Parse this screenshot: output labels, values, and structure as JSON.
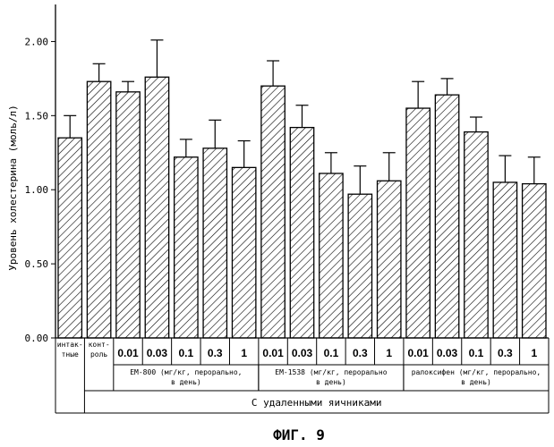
{
  "chart_data": {
    "type": "bar",
    "ylabel": "Уровень холестерина (моль/л)",
    "ylim": [
      0,
      2.25
    ],
    "yticks": [
      "0.00",
      "0.50",
      "1.00",
      "1.50",
      "2.00"
    ],
    "bars": [
      {
        "label": "интак-\nтные",
        "value": 1.35,
        "err": 0.15
      },
      {
        "label": "конт-\nроль",
        "value": 1.73,
        "err": 0.12
      },
      {
        "label": "0.01",
        "value": 1.66,
        "err": 0.07
      },
      {
        "label": "0.03",
        "value": 1.76,
        "err": 0.25
      },
      {
        "label": "0.1",
        "value": 1.22,
        "err": 0.12
      },
      {
        "label": "0.3",
        "value": 1.28,
        "err": 0.19
      },
      {
        "label": "1",
        "value": 1.15,
        "err": 0.18
      },
      {
        "label": "0.01",
        "value": 1.7,
        "err": 0.17
      },
      {
        "label": "0.03",
        "value": 1.42,
        "err": 0.15
      },
      {
        "label": "0.1",
        "value": 1.11,
        "err": 0.14
      },
      {
        "label": "0.3",
        "value": 0.97,
        "err": 0.19
      },
      {
        "label": "1",
        "value": 1.06,
        "err": 0.19
      },
      {
        "label": "0.01",
        "value": 1.55,
        "err": 0.18
      },
      {
        "label": "0.03",
        "value": 1.64,
        "err": 0.11
      },
      {
        "label": "0.1",
        "value": 1.39,
        "err": 0.1
      },
      {
        "label": "0.3",
        "value": 1.05,
        "err": 0.18
      },
      {
        "label": "1",
        "value": 1.04,
        "err": 0.18
      }
    ],
    "groups": [
      {
        "label": "EM-800 (мг/кг, перорально,\nв день)",
        "from": 2,
        "to": 6
      },
      {
        "label": "EM-1538 (мг/кг, перорально\nв день)",
        "from": 7,
        "to": 11
      },
      {
        "label": "ралоксифен (мг/кг, перорально,\nв день)",
        "from": 12,
        "to": 16
      }
    ],
    "ovx_label": "С удаленными яичниками",
    "figure_caption": "ФИГ. 9"
  }
}
